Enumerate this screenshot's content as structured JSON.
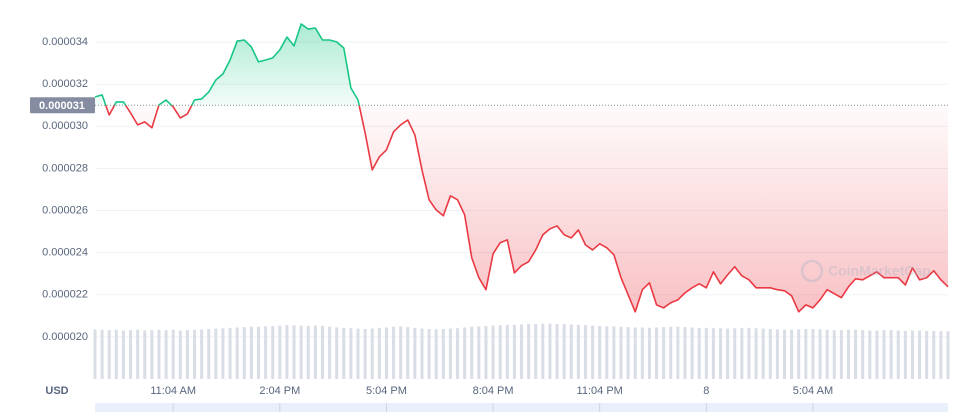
{
  "chart_data": {
    "type": "line",
    "currency": "USD",
    "watermark": "CoinMarketCap",
    "baseline": 3.1e-05,
    "up_color": "#16c784",
    "down_color": "#ea3943",
    "volume_color": "#d9dde5",
    "grid": true,
    "xlim": [
      0,
      120
    ],
    "xticks": [
      {
        "value": 11,
        "label": "11:04 AM"
      },
      {
        "value": 26,
        "label": "2:04 PM"
      },
      {
        "value": 41,
        "label": "5:04 PM"
      },
      {
        "value": 56,
        "label": "8:04 PM"
      },
      {
        "value": 71,
        "label": "11:04 PM"
      },
      {
        "value": 86,
        "label": "8"
      },
      {
        "value": 101,
        "label": "5:04 AM"
      }
    ],
    "ylim": [
      1.8e-05,
      3.6e-05
    ],
    "yticks": [
      {
        "value": 2e-05,
        "label": "0.000020"
      },
      2.2e-05,
      2.4e-05,
      2.6e-05,
      2.8e-05,
      {
        "value": 3e-05,
        "label": "0.000030"
      },
      3.2e-05,
      3.4e-05
    ],
    "values": [
      3.14e-05,
      3.149e-05,
      3.054e-05,
      3.116e-05,
      3.116e-05,
      3.064e-05,
      3.007e-05,
      3.021e-05,
      2.993e-05,
      3.102e-05,
      3.125e-05,
      3.092e-05,
      3.04e-05,
      3.059e-05,
      3.125e-05,
      3.13e-05,
      3.163e-05,
      3.22e-05,
      3.249e-05,
      3.315e-05,
      3.405e-05,
      3.41e-05,
      3.377e-05,
      3.306e-05,
      3.315e-05,
      3.325e-05,
      3.363e-05,
      3.424e-05,
      3.382e-05,
      3.486e-05,
      3.462e-05,
      3.467e-05,
      3.41e-05,
      3.41e-05,
      3.401e-05,
      3.372e-05,
      3.182e-05,
      3.125e-05,
      2.969e-05,
      2.793e-05,
      2.855e-05,
      2.888e-05,
      2.974e-05,
      3.007e-05,
      3.03e-05,
      2.959e-05,
      2.793e-05,
      2.651e-05,
      2.603e-05,
      2.575e-05,
      2.67e-05,
      2.651e-05,
      2.58e-05,
      2.376e-05,
      2.281e-05,
      2.224e-05,
      2.395e-05,
      2.447e-05,
      2.461e-05,
      2.304e-05,
      2.338e-05,
      2.357e-05,
      2.413e-05,
      2.485e-05,
      2.513e-05,
      2.527e-05,
      2.485e-05,
      2.47e-05,
      2.508e-05,
      2.437e-05,
      2.413e-05,
      2.442e-05,
      2.423e-05,
      2.39e-05,
      2.281e-05,
      2.2e-05,
      2.119e-05,
      2.224e-05,
      2.257e-05,
      2.152e-05,
      2.138e-05,
      2.162e-05,
      2.176e-05,
      2.209e-05,
      2.233e-05,
      2.252e-05,
      2.233e-05,
      2.309e-05,
      2.252e-05,
      2.295e-05,
      2.333e-05,
      2.29e-05,
      2.271e-05,
      2.233e-05,
      2.233e-05,
      2.233e-05,
      2.224e-05,
      2.219e-05,
      2.195e-05,
      2.119e-05,
      2.152e-05,
      2.138e-05,
      2.176e-05,
      2.224e-05,
      2.205e-05,
      2.186e-05,
      2.238e-05,
      2.276e-05,
      2.271e-05,
      2.29e-05,
      2.309e-05,
      2.281e-05,
      2.281e-05,
      2.281e-05,
      2.247e-05,
      2.328e-05,
      2.271e-05,
      2.281e-05,
      2.314e-05,
      2.271e-05,
      2.238e-05
    ],
    "volume": {
      "ylim": [
        0,
        100
      ],
      "values": [
        13.1,
        13.0,
        12.9,
        13.0,
        12.8,
        12.9,
        13.0,
        12.8,
        12.9,
        13.0,
        12.9,
        13.0,
        12.8,
        12.9,
        13.0,
        13.1,
        13.2,
        13.3,
        13.4,
        13.5,
        13.6,
        13.7,
        13.8,
        13.8,
        13.9,
        14.0,
        14.1,
        14.2,
        14.2,
        14.1,
        14.0,
        14.1,
        14.0,
        13.8,
        13.6,
        13.5,
        13.4,
        13.3,
        13.2,
        13.3,
        13.5,
        13.6,
        13.8,
        13.9,
        13.7,
        13.5,
        13.3,
        13.2,
        13.1,
        13.2,
        13.3,
        13.4,
        13.6,
        13.8,
        13.9,
        14.0,
        14.1,
        14.2,
        14.3,
        14.3,
        14.4,
        14.5,
        14.5,
        14.6,
        14.6,
        14.5,
        14.5,
        14.4,
        14.3,
        14.2,
        14.1,
        14.0,
        13.9,
        13.9,
        13.8,
        13.7,
        13.6,
        13.6,
        13.5,
        13.6,
        13.7,
        13.8,
        13.8,
        13.7,
        13.6,
        13.5,
        13.5,
        13.4,
        13.4,
        13.3,
        13.4,
        13.5,
        13.5,
        13.4,
        13.3,
        13.2,
        13.1,
        13.0,
        13.0,
        13.1,
        13.2,
        13.2,
        13.1,
        13.0,
        12.9,
        12.9,
        13.0,
        13.0,
        12.9,
        12.8,
        12.8,
        12.9,
        12.9,
        12.8,
        12.7,
        12.8,
        12.8,
        12.7,
        12.7,
        12.6,
        12.6
      ]
    }
  }
}
